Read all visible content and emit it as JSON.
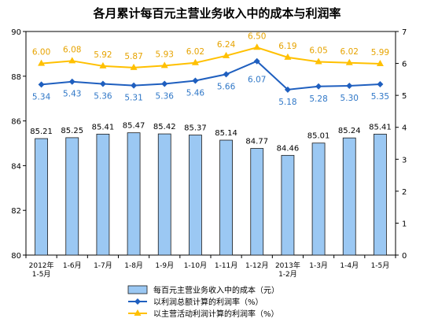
{
  "chart_data": {
    "type": "bar",
    "title": "各月累计每百元主营业务收入中的成本与利润率",
    "categories": [
      [
        "2012年",
        "1-5月"
      ],
      [
        "1-6月"
      ],
      [
        "1-7月"
      ],
      [
        "1-8月"
      ],
      [
        "1-9月"
      ],
      [
        "1-10月"
      ],
      [
        "1-11月"
      ],
      [
        "1-12月"
      ],
      [
        "2013年",
        "1-2月"
      ],
      [
        "1-3月"
      ],
      [
        "1-4月"
      ],
      [
        "1-5月"
      ]
    ],
    "series": [
      {
        "name": "每百元主营业务收入中的成本（元）",
        "axis": "left",
        "kind": "bar",
        "color": "#9bc8f3",
        "values": [
          85.21,
          85.25,
          85.41,
          85.47,
          85.42,
          85.37,
          85.14,
          84.77,
          84.46,
          85.01,
          85.24,
          85.41
        ]
      },
      {
        "name": "以利润总额计算的利润率（%）",
        "axis": "right",
        "kind": "line",
        "marker": "diamond",
        "color": "#1f5fbf",
        "values": [
          5.34,
          5.43,
          5.36,
          5.31,
          5.36,
          5.46,
          5.66,
          6.07,
          5.18,
          5.28,
          5.3,
          5.35
        ]
      },
      {
        "name": "以主营活动利润计算的利润率（%）",
        "axis": "right",
        "kind": "line",
        "marker": "triangle",
        "color": "#ffc000",
        "values": [
          6.0,
          6.08,
          5.92,
          5.87,
          5.93,
          6.02,
          6.24,
          6.5,
          6.19,
          6.05,
          6.02,
          5.99
        ]
      }
    ],
    "left_axis": {
      "min": 80,
      "max": 90,
      "ticks": [
        80,
        82,
        84,
        86,
        88,
        90
      ]
    },
    "right_axis": {
      "min": 0,
      "max": 7,
      "ticks": [
        0,
        1,
        2,
        3,
        4,
        5,
        6,
        7
      ]
    },
    "grid": false,
    "legend_position": "bottom"
  }
}
